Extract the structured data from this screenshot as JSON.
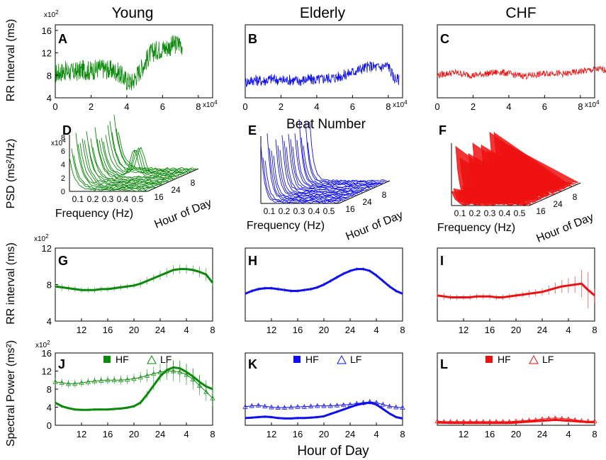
{
  "columns": [
    {
      "title": "Young",
      "color": "#0a8a0a"
    },
    {
      "title": "Elderly",
      "color": "#1010ee"
    },
    {
      "title": "CHF",
      "color": "#ee1111"
    }
  ],
  "row_labels": {
    "rr": "RR Interval (ms)",
    "psd": "PSD (ms²/Hz)",
    "rr_hourly": "RR interval (ms)",
    "spectral": "Spectral Power (ms²)"
  },
  "x_labels": {
    "beat_number": "Beat Number",
    "hour_of_day": "Hour of Day"
  },
  "legend": {
    "hf": "HF",
    "lf": "LF"
  },
  "panel_letters": [
    "A",
    "B",
    "C",
    "D",
    "E",
    "F",
    "G",
    "H",
    "I",
    "J",
    "K",
    "L"
  ],
  "chart_data": [
    {
      "id": "rr_vs_beat",
      "type": "line",
      "xlabel": "Beat Number",
      "ylabel": "RR Interval (ms)",
      "x_multiplier": "x10^4",
      "y_multiplier": "x10^2",
      "yticks": [
        4,
        8,
        12,
        16
      ],
      "ylim": [
        4,
        17
      ],
      "xticks": [
        0,
        2,
        4,
        6,
        8
      ],
      "panels": [
        {
          "letter": "A",
          "series": "Young",
          "xlim": [
            0,
            7.1
          ],
          "x": [
            0,
            0.5,
            1,
            1.5,
            2,
            2.5,
            3,
            3.5,
            4,
            4.3,
            4.6,
            5,
            5.3,
            5.6,
            6,
            6.3,
            6.6,
            7,
            7.1
          ],
          "y": [
            8.3,
            8.8,
            8.5,
            9.0,
            8.8,
            9.3,
            9.0,
            8.6,
            7.0,
            6.8,
            8.2,
            10.2,
            11.8,
            12.4,
            12.8,
            13.0,
            13.4,
            13.8,
            13.2
          ]
        },
        {
          "letter": "B",
          "series": "Elderly",
          "xlim": [
            0,
            8.6
          ],
          "x": [
            0,
            0.5,
            1,
            1.5,
            2,
            2.5,
            3,
            3.5,
            4,
            4.5,
            5,
            5.5,
            6,
            6.5,
            7,
            7.5,
            8,
            8.3,
            8.6
          ],
          "y": [
            6.8,
            7.2,
            7.0,
            7.4,
            7.1,
            7.2,
            7.0,
            7.3,
            7.2,
            7.5,
            7.6,
            8.0,
            8.6,
            9.2,
            9.6,
            9.4,
            9.8,
            7.6,
            7.2
          ]
        },
        {
          "letter": "C",
          "series": "CHF",
          "xlim": [
            0,
            9.5
          ],
          "x": [
            0,
            0.5,
            1,
            1.5,
            2,
            2.5,
            3,
            3.5,
            4,
            4.5,
            5,
            5.5,
            6,
            6.5,
            7,
            7.5,
            8,
            8.5,
            9,
            9.5
          ],
          "y": [
            8.0,
            8.3,
            8.5,
            8.2,
            8.0,
            8.2,
            8.4,
            8.6,
            8.3,
            8.0,
            7.9,
            8.1,
            8.3,
            8.5,
            8.2,
            8.4,
            8.7,
            8.9,
            9.1,
            9.0
          ]
        }
      ]
    },
    {
      "id": "psd_3d",
      "type": "line",
      "xlabel": "Frequency (Hz)",
      "ylabel": "PSD (ms²/Hz)",
      "zlabel": "Hour of Day",
      "freq_ticks": [
        "0.1",
        "0.2",
        "0.3",
        "0.4",
        "0.5"
      ],
      "hour_ticks": [
        "16",
        "24",
        "8"
      ],
      "psd_ticks": [
        "0",
        "2",
        "4",
        "6",
        "8"
      ],
      "psd_multiplier": "x10^4",
      "panels": [
        {
          "letter": "D",
          "series": "Young"
        },
        {
          "letter": "E",
          "series": "Elderly"
        },
        {
          "letter": "F",
          "series": "CHF"
        }
      ]
    },
    {
      "id": "rr_vs_hour",
      "type": "line",
      "xlabel": "Hour of Day",
      "ylabel": "RR interval (ms)",
      "y_multiplier": "x10^2",
      "x": [
        8,
        9,
        10,
        11,
        12,
        13,
        14,
        15,
        16,
        17,
        18,
        19,
        20,
        21,
        22,
        23,
        24,
        25,
        26,
        27,
        28,
        29,
        30,
        31,
        32
      ],
      "xticks": [
        "12",
        "16",
        "20",
        "24",
        "4",
        "8"
      ],
      "xtick_positions": [
        12,
        16,
        20,
        24,
        28,
        32
      ],
      "xlim": [
        8,
        32
      ],
      "yticks": [
        4,
        8,
        12
      ],
      "ylim": [
        4,
        12
      ],
      "panels": [
        {
          "letter": "G",
          "series": "Young",
          "y": [
            7.8,
            7.7,
            7.6,
            7.5,
            7.4,
            7.4,
            7.4,
            7.5,
            7.5,
            7.6,
            7.7,
            7.8,
            7.9,
            8.1,
            8.4,
            8.7,
            9.0,
            9.3,
            9.6,
            9.7,
            9.7,
            9.6,
            9.4,
            9.1,
            8.2
          ],
          "err": [
            0.4,
            0.4,
            0.3,
            0.3,
            0.3,
            0.3,
            0.3,
            0.3,
            0.3,
            0.3,
            0.3,
            0.3,
            0.3,
            0.4,
            0.4,
            0.4,
            0.5,
            0.5,
            0.5,
            0.5,
            0.5,
            0.5,
            0.6,
            0.7,
            0.4
          ]
        },
        {
          "letter": "H",
          "series": "Elderly",
          "y": [
            7.0,
            7.3,
            7.5,
            7.6,
            7.6,
            7.5,
            7.4,
            7.3,
            7.3,
            7.4,
            7.5,
            7.7,
            8.0,
            8.4,
            8.8,
            9.2,
            9.5,
            9.7,
            9.7,
            9.5,
            9.0,
            8.4,
            7.8,
            7.3,
            7.0
          ],
          "err": [
            0.2,
            0.2,
            0.2,
            0.2,
            0.2,
            0.2,
            0.2,
            0.2,
            0.2,
            0.2,
            0.2,
            0.2,
            0.2,
            0.2,
            0.2,
            0.2,
            0.2,
            0.2,
            0.2,
            0.2,
            0.2,
            0.2,
            0.2,
            0.2,
            0.2
          ]
        },
        {
          "letter": "I",
          "series": "CHF",
          "y": [
            6.8,
            6.7,
            6.6,
            6.6,
            6.6,
            6.6,
            6.7,
            6.7,
            6.7,
            6.6,
            6.6,
            6.7,
            6.8,
            6.9,
            7.0,
            7.1,
            7.2,
            7.4,
            7.6,
            7.8,
            7.9,
            8.0,
            8.1,
            7.4,
            6.8
          ],
          "err": [
            0.4,
            0.4,
            0.3,
            0.3,
            0.3,
            0.3,
            0.3,
            0.3,
            0.3,
            0.3,
            0.3,
            0.3,
            0.3,
            0.3,
            0.4,
            0.4,
            0.4,
            0.5,
            0.6,
            0.7,
            0.8,
            0.9,
            1.5,
            2.0,
            0.8
          ]
        }
      ]
    },
    {
      "id": "spectral_vs_hour",
      "type": "line",
      "xlabel": "Hour of Day",
      "ylabel": "Spectral Power (ms²)",
      "y_multiplier": "x10^2",
      "x": [
        8,
        9,
        10,
        11,
        12,
        13,
        14,
        15,
        16,
        17,
        18,
        19,
        20,
        21,
        22,
        23,
        24,
        25,
        26,
        27,
        28,
        29,
        30,
        31,
        32
      ],
      "xticks": [
        "12",
        "16",
        "20",
        "24",
        "4",
        "8"
      ],
      "xtick_positions": [
        12,
        16,
        20,
        24,
        28,
        32
      ],
      "xlim": [
        8,
        32
      ],
      "yticks": [
        0,
        4,
        8,
        12,
        16
      ],
      "ylim": [
        0,
        16
      ],
      "panels": [
        {
          "letter": "J",
          "series": "Young",
          "hf": [
            5.0,
            4.2,
            3.8,
            3.5,
            3.4,
            3.4,
            3.5,
            3.5,
            3.5,
            3.6,
            3.7,
            3.9,
            4.2,
            5.0,
            6.8,
            8.8,
            10.8,
            12.2,
            12.8,
            12.6,
            11.8,
            10.8,
            9.6,
            8.6,
            8.0
          ],
          "lf": [
            9.6,
            9.4,
            9.2,
            9.2,
            9.4,
            9.6,
            9.8,
            9.9,
            10.0,
            10.0,
            10.0,
            10.1,
            10.3,
            10.6,
            11.0,
            11.4,
            11.8,
            12.0,
            12.0,
            11.8,
            11.2,
            10.2,
            8.8,
            7.4,
            6.0
          ],
          "hf_err": [
            0.4,
            0.4,
            0.3,
            0.3,
            0.3,
            0.3,
            0.3,
            0.3,
            0.3,
            0.3,
            0.3,
            0.3,
            0.4,
            0.5,
            0.8,
            1.0,
            1.2,
            1.4,
            1.6,
            1.8,
            1.8,
            1.8,
            1.6,
            1.4,
            1.2
          ],
          "lf_err": [
            0.9,
            0.9,
            0.9,
            0.9,
            0.9,
            0.9,
            0.9,
            0.9,
            0.9,
            0.9,
            1.0,
            1.0,
            1.1,
            1.2,
            1.4,
            1.6,
            1.8,
            2.0,
            2.2,
            2.3,
            2.3,
            2.3,
            2.2,
            2.0,
            1.8
          ]
        },
        {
          "letter": "K",
          "series": "Elderly",
          "hf": [
            1.6,
            1.7,
            1.8,
            1.9,
            1.8,
            1.6,
            1.5,
            1.5,
            1.6,
            1.6,
            1.7,
            1.8,
            2.0,
            2.5,
            3.0,
            3.5,
            4.0,
            4.5,
            4.8,
            5.0,
            4.6,
            3.6,
            2.6,
            1.8,
            1.5
          ],
          "lf": [
            4.1,
            4.3,
            4.4,
            4.2,
            4.0,
            3.9,
            3.9,
            4.0,
            4.1,
            4.1,
            4.2,
            4.3,
            4.3,
            4.3,
            4.4,
            4.5,
            4.6,
            4.8,
            5.0,
            5.2,
            5.0,
            4.6,
            4.2,
            4.0,
            3.9
          ],
          "hf_err": [
            0.3,
            0.3,
            0.3,
            0.3,
            0.3,
            0.3,
            0.3,
            0.3,
            0.3,
            0.3,
            0.3,
            0.3,
            0.3,
            0.3,
            0.3,
            0.3,
            0.3,
            0.3,
            0.4,
            0.4,
            0.4,
            0.3,
            0.3,
            0.3,
            0.3
          ],
          "lf_err": [
            0.5,
            0.5,
            0.5,
            0.5,
            0.5,
            0.5,
            0.5,
            0.5,
            0.5,
            0.5,
            0.5,
            0.5,
            0.5,
            0.5,
            0.5,
            0.5,
            0.5,
            0.6,
            0.6,
            0.6,
            0.6,
            0.6,
            0.5,
            0.5,
            0.5
          ]
        },
        {
          "letter": "L",
          "series": "CHF",
          "hf": [
            0.6,
            0.6,
            0.5,
            0.5,
            0.5,
            0.5,
            0.5,
            0.5,
            0.5,
            0.5,
            0.5,
            0.5,
            0.6,
            0.7,
            0.8,
            0.9,
            1.0,
            1.1,
            1.2,
            1.1,
            1.0,
            0.9,
            0.8,
            0.7,
            0.7
          ],
          "lf": [
            0.9,
            0.8,
            0.8,
            0.8,
            0.8,
            0.8,
            0.8,
            0.8,
            0.8,
            0.8,
            0.8,
            0.8,
            0.9,
            1.0,
            1.1,
            1.2,
            1.4,
            1.5,
            1.6,
            1.5,
            1.4,
            1.2,
            1.0,
            0.9,
            0.9
          ],
          "hf_err": [
            0.2,
            0.2,
            0.2,
            0.2,
            0.2,
            0.2,
            0.2,
            0.2,
            0.2,
            0.2,
            0.2,
            0.2,
            0.2,
            0.2,
            0.2,
            0.2,
            0.3,
            0.3,
            0.3,
            0.3,
            0.3,
            0.3,
            0.2,
            0.2,
            0.2
          ],
          "lf_err": [
            0.3,
            0.3,
            0.3,
            0.3,
            0.3,
            0.3,
            0.3,
            0.3,
            0.3,
            0.3,
            0.3,
            0.3,
            0.3,
            0.3,
            0.3,
            0.3,
            0.4,
            0.4,
            0.4,
            0.4,
            0.4,
            0.4,
            0.3,
            0.3,
            0.3
          ]
        }
      ]
    }
  ]
}
